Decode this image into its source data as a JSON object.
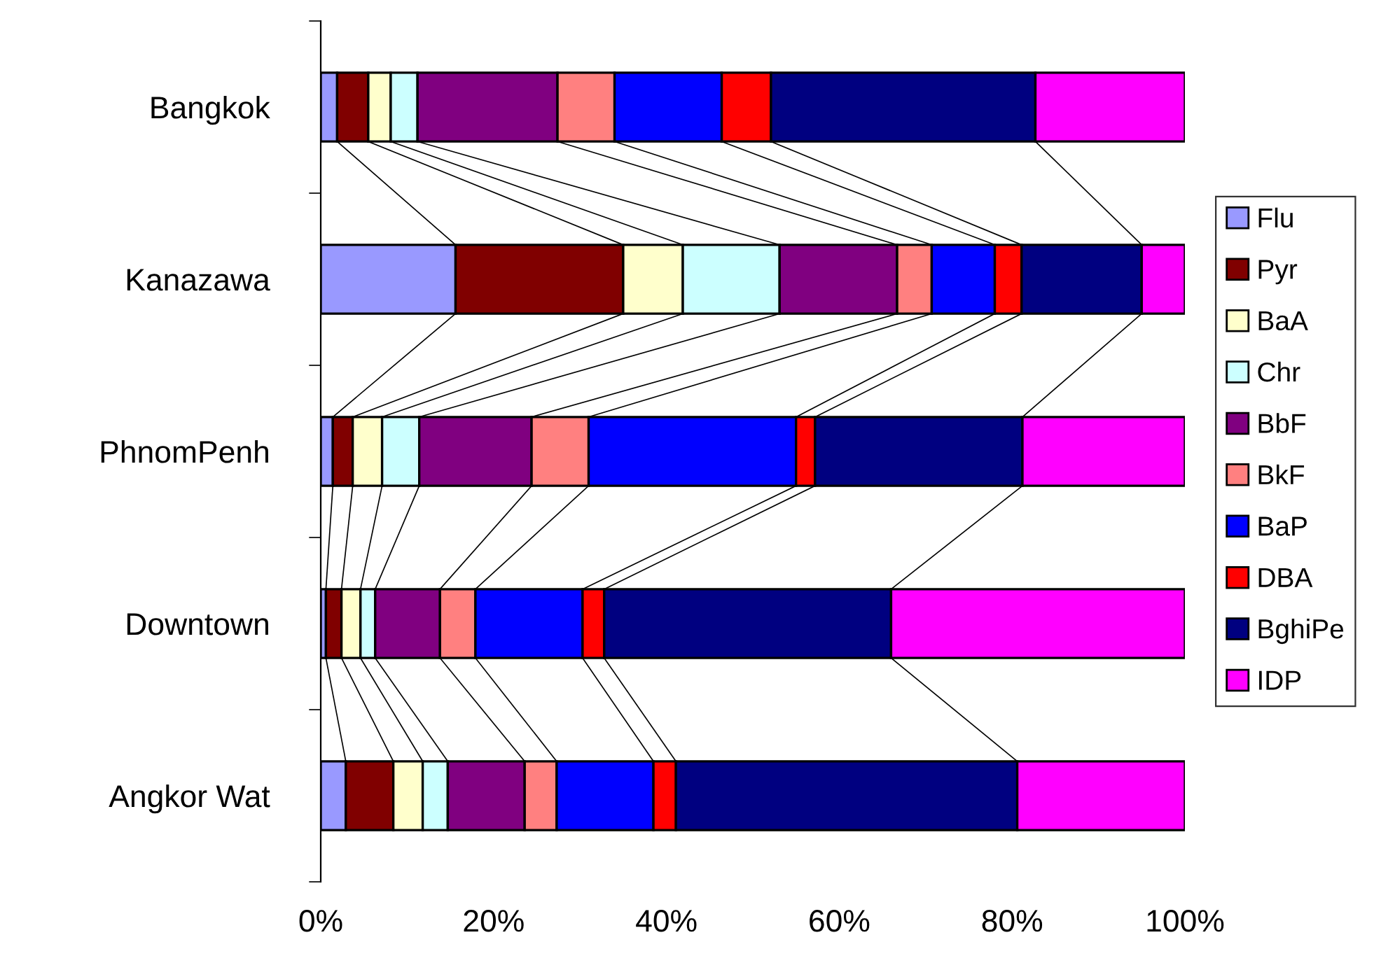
{
  "chart_data": {
    "type": "bar",
    "orientation": "horizontal",
    "stacked": true,
    "categories": [
      "Bangkok",
      "Kanazawa",
      "PhnomPenh",
      "Downtown",
      "Angkor Wat"
    ],
    "series": [
      {
        "name": "Flu",
        "color": "#9999ff",
        "values": [
          1.9,
          15.6,
          1.4,
          0.6,
          2.9
        ]
      },
      {
        "name": "Pyr",
        "color": "#800000",
        "values": [
          3.6,
          19.4,
          2.3,
          1.8,
          5.5
        ]
      },
      {
        "name": "BaA",
        "color": "#ffffcc",
        "values": [
          2.6,
          6.9,
          3.4,
          2.2,
          3.4
        ]
      },
      {
        "name": "Chr",
        "color": "#ccffff",
        "values": [
          3.1,
          11.2,
          4.3,
          1.7,
          2.9
        ]
      },
      {
        "name": "BbF",
        "color": "#800080",
        "values": [
          16.2,
          13.6,
          13.0,
          7.5,
          8.9
        ]
      },
      {
        "name": "BkF",
        "color": "#ff8080",
        "values": [
          6.6,
          4.0,
          6.6,
          4.1,
          3.7
        ]
      },
      {
        "name": "BaP",
        "color": "#0000ff",
        "values": [
          12.4,
          7.3,
          24.0,
          12.4,
          11.2
        ]
      },
      {
        "name": "DBA",
        "color": "#ff0000",
        "values": [
          5.7,
          3.1,
          2.2,
          2.5,
          2.6
        ]
      },
      {
        "name": "BghiPe",
        "color": "#000080",
        "values": [
          30.6,
          13.9,
          24.0,
          33.2,
          39.5
        ]
      },
      {
        "name": "IDP",
        "color": "#ff00ff",
        "values": [
          17.3,
          5.0,
          18.8,
          34.0,
          19.4
        ]
      }
    ],
    "xlim": [
      0,
      100
    ],
    "xticks": [
      {
        "value": 0,
        "label": "0%"
      },
      {
        "value": 20,
        "label": "20%"
      },
      {
        "value": 40,
        "label": "40%"
      },
      {
        "value": 60,
        "label": "60%"
      },
      {
        "value": 80,
        "label": "80%"
      },
      {
        "value": 100,
        "label": "100%"
      }
    ],
    "legend": "right",
    "grid": false
  }
}
